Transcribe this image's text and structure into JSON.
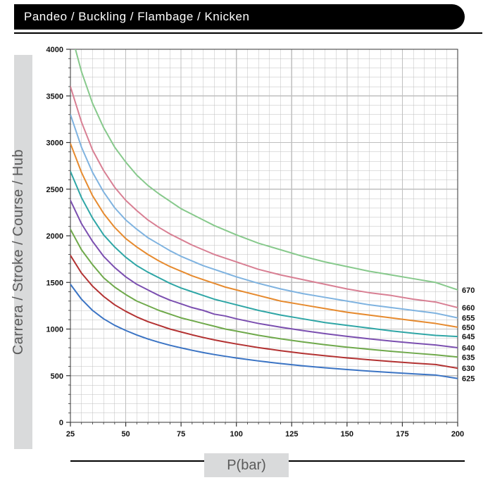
{
  "header": {
    "title": "Pandeo / Buckling / Flambage / Knicken"
  },
  "ylabel": "Carrera / Stroke / Course / Hub",
  "xlabel": "P(bar)",
  "chart": {
    "type": "line",
    "background_color": "#ffffff",
    "grid_color": "#bfbfbf",
    "axis_color": "#333333",
    "tick_font_size": 11,
    "tick_font_weight": "bold",
    "label_font_size": 20,
    "label_color": "#5a5a5a",
    "line_width": 2,
    "xlim": [
      25,
      200
    ],
    "ylim": [
      0,
      4000
    ],
    "xtick_major": [
      25,
      50,
      75,
      100,
      125,
      150,
      175,
      200
    ],
    "xtick_minor_step": 5,
    "ytick_major": [
      0,
      500,
      1000,
      1500,
      2000,
      2500,
      3000,
      3500,
      4000
    ],
    "ytick_minor_step": 100,
    "x_values": [
      25,
      30,
      35,
      40,
      45,
      50,
      55,
      60,
      65,
      70,
      75,
      80,
      85,
      90,
      95,
      100,
      110,
      120,
      130,
      140,
      150,
      160,
      170,
      180,
      190,
      200
    ],
    "series_label_font_size": 11,
    "series_label_font_weight": "bold",
    "series": [
      {
        "label": "625",
        "color": "#3b74c4",
        "end_value": 470,
        "y": [
          1480,
          1320,
          1200,
          1110,
          1040,
          985,
          936,
          894,
          858,
          826,
          798,
          772,
          748,
          727,
          708,
          690,
          658,
          630,
          606,
          585,
          566,
          549,
          534,
          520,
          507,
          470
        ]
      },
      {
        "label": "630",
        "color": "#b33232",
        "end_value": 580,
        "y": [
          1790,
          1600,
          1460,
          1350,
          1260,
          1190,
          1130,
          1080,
          1040,
          1000,
          969,
          938,
          910,
          884,
          861,
          840,
          801,
          768,
          739,
          714,
          691,
          671,
          652,
          635,
          620,
          580
        ]
      },
      {
        "label": "635",
        "color": "#6fa94b",
        "end_value": 700,
        "y": [
          2070,
          1850,
          1690,
          1550,
          1450,
          1370,
          1300,
          1250,
          1200,
          1160,
          1120,
          1090,
          1060,
          1030,
          1000,
          978,
          933,
          895,
          862,
          832,
          806,
          783,
          761,
          742,
          724,
          700
        ]
      },
      {
        "label": "640",
        "color": "#7b4fb0",
        "end_value": 800,
        "y": [
          2380,
          2130,
          1940,
          1780,
          1660,
          1560,
          1480,
          1420,
          1360,
          1310,
          1270,
          1230,
          1200,
          1160,
          1140,
          1110,
          1060,
          1020,
          984,
          951,
          922,
          895,
          871,
          849,
          829,
          800
        ]
      },
      {
        "label": "645",
        "color": "#2fa6a6",
        "end_value": 920,
        "y": [
          2690,
          2410,
          2190,
          2010,
          1880,
          1770,
          1680,
          1610,
          1550,
          1490,
          1440,
          1400,
          1360,
          1320,
          1290,
          1260,
          1200,
          1150,
          1110,
          1070,
          1040,
          1010,
          980,
          955,
          932,
          920
        ]
      },
      {
        "label": "650",
        "color": "#e68a2e",
        "end_value": 1020,
        "y": [
          2990,
          2680,
          2430,
          2240,
          2090,
          1970,
          1880,
          1800,
          1730,
          1670,
          1620,
          1570,
          1530,
          1490,
          1450,
          1420,
          1360,
          1300,
          1260,
          1220,
          1180,
          1150,
          1120,
          1090,
          1060,
          1020
        ]
      },
      {
        "label": "655",
        "color": "#7fb3e0",
        "end_value": 1120,
        "y": [
          3300,
          2950,
          2680,
          2470,
          2300,
          2170,
          2070,
          1980,
          1910,
          1840,
          1780,
          1730,
          1680,
          1640,
          1600,
          1560,
          1490,
          1430,
          1380,
          1340,
          1300,
          1260,
          1230,
          1200,
          1170,
          1120
        ]
      },
      {
        "label": "660",
        "color": "#d87f93",
        "end_value": 1230,
        "y": [
          3600,
          3220,
          2920,
          2700,
          2520,
          2380,
          2270,
          2170,
          2090,
          2020,
          1960,
          1900,
          1850,
          1800,
          1760,
          1720,
          1640,
          1580,
          1530,
          1480,
          1430,
          1390,
          1360,
          1320,
          1290,
          1230
        ]
      },
      {
        "label": "670",
        "color": "#87c98c",
        "end_value": 1420,
        "y": [
          4200,
          3760,
          3420,
          3160,
          2950,
          2790,
          2650,
          2540,
          2450,
          2370,
          2290,
          2230,
          2170,
          2110,
          2060,
          2010,
          1920,
          1850,
          1780,
          1720,
          1670,
          1620,
          1580,
          1540,
          1500,
          1420
        ]
      }
    ]
  }
}
